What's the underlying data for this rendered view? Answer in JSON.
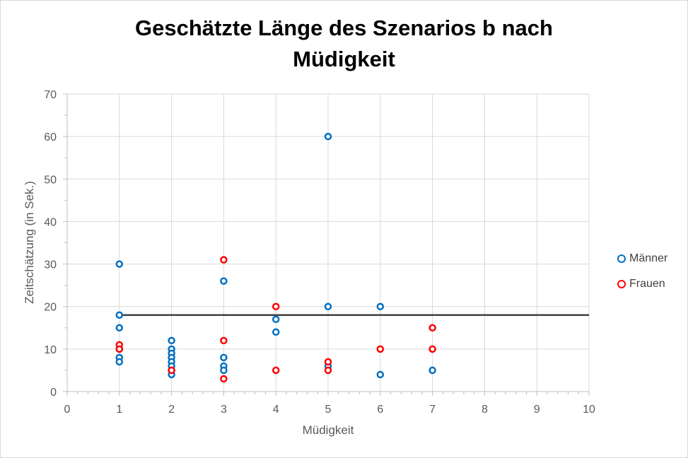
{
  "chart_data": {
    "type": "scatter",
    "title_line1": "Geschätzte Länge des Szenarios b nach",
    "title_line2": "Müdigkeit",
    "xlabel": "Müdigkeit",
    "ylabel": "Zeitschätzung (in Sek.)",
    "xlim": [
      0,
      10
    ],
    "ylim": [
      0,
      70
    ],
    "xticks": [
      0,
      1,
      2,
      3,
      4,
      5,
      6,
      7,
      8,
      9,
      10
    ],
    "yticks": [
      0,
      10,
      20,
      30,
      40,
      50,
      60,
      70
    ],
    "grid": true,
    "legend_position": "right",
    "reference_line": {
      "y": 18,
      "x_from": 1,
      "x_to": 10,
      "color": "#404040"
    },
    "series": [
      {
        "name": "Männer",
        "color": "#0070c0",
        "points": [
          [
            1,
            30
          ],
          [
            1,
            18
          ],
          [
            1,
            15
          ],
          [
            1,
            10
          ],
          [
            1,
            8
          ],
          [
            1,
            7
          ],
          [
            2,
            12
          ],
          [
            2,
            10
          ],
          [
            2,
            9
          ],
          [
            2,
            8
          ],
          [
            2,
            7
          ],
          [
            2,
            6
          ],
          [
            2,
            5
          ],
          [
            2,
            4
          ],
          [
            3,
            26
          ],
          [
            3,
            8
          ],
          [
            3,
            6
          ],
          [
            3,
            5
          ],
          [
            4,
            17
          ],
          [
            4,
            14
          ],
          [
            5,
            60
          ],
          [
            5,
            20
          ],
          [
            5,
            6
          ],
          [
            6,
            20
          ],
          [
            6,
            4
          ],
          [
            7,
            5
          ]
        ]
      },
      {
        "name": "Frauen",
        "color": "#ff0000",
        "points": [
          [
            1,
            11
          ],
          [
            1,
            10
          ],
          [
            2,
            5
          ],
          [
            3,
            31
          ],
          [
            3,
            12
          ],
          [
            3,
            3
          ],
          [
            4,
            20
          ],
          [
            4,
            5
          ],
          [
            5,
            7
          ],
          [
            5,
            5
          ],
          [
            6,
            10
          ],
          [
            7,
            15
          ],
          [
            7,
            10
          ]
        ]
      }
    ]
  }
}
